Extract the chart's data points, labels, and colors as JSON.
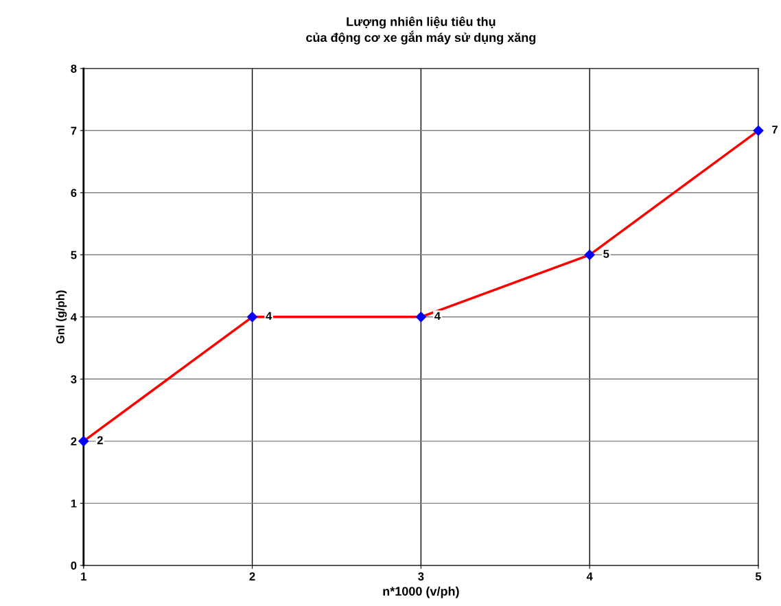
{
  "chart_data": {
    "type": "line",
    "title": "Lượng nhiên liệu tiêu thụ\ncủa động cơ xe gắn máy sử dụng xăng",
    "xlabel": "n*1000 (v/ph)",
    "ylabel": "Gnl (g/ph)",
    "x": [
      1,
      2,
      3,
      4,
      5
    ],
    "series": [
      {
        "color": "#ff0000",
        "colors": [
          "#0000ff",
          "#0000ff",
          "#0000ff",
          "#0000ff",
          "#0000ff"
        ],
        "values": [
          2,
          4,
          4,
          5,
          7
        ]
      }
    ],
    "xlim": [
      1,
      5
    ],
    "xticks": [
      1,
      2,
      3,
      4,
      5
    ],
    "ylim": [
      0,
      8
    ],
    "yticks": [
      0,
      1,
      2,
      3,
      4,
      5,
      6,
      7,
      8
    ],
    "grid": true,
    "marker": "diamond",
    "line_style": "solid",
    "data_labels": true
  }
}
